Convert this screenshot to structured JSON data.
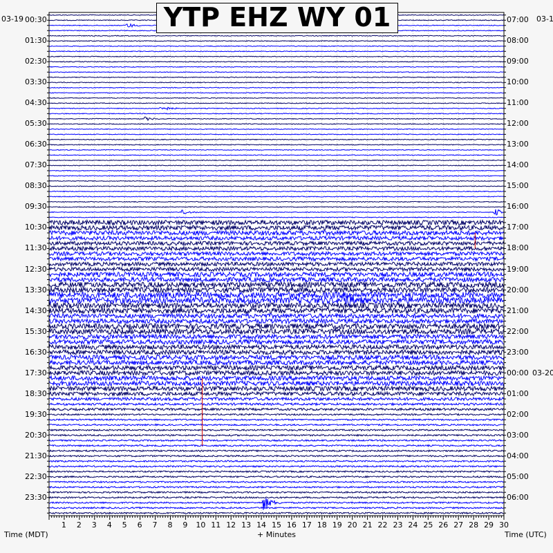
{
  "chart_data": {
    "type": "line",
    "title": "YTP EHZ WY 01",
    "left_axis_label": "Time (MDT)",
    "right_axis_label": "Time (UTC)",
    "x_axis_label": "+ Minutes",
    "left_date": "03-19",
    "right_date_top": "03-1",
    "right_date_change": "03-20",
    "x_ticks": [
      "1",
      "2",
      "3",
      "4",
      "5",
      "6",
      "7",
      "8",
      "9",
      "10",
      "11",
      "12",
      "13",
      "14",
      "15",
      "16",
      "17",
      "18",
      "19",
      "20",
      "21",
      "22",
      "23",
      "24",
      "25",
      "26",
      "27",
      "28",
      "29",
      "30"
    ],
    "xlim": [
      0,
      30
    ],
    "left_times": [
      "00:30",
      "01:30",
      "02:30",
      "03:30",
      "04:30",
      "05:30",
      "06:30",
      "07:30",
      "08:30",
      "09:30",
      "10:30",
      "11:30",
      "12:30",
      "13:30",
      "14:30",
      "15:30",
      "16:30",
      "17:30",
      "18:30",
      "19:30",
      "20:30",
      "21:30",
      "22:30",
      "23:30"
    ],
    "right_times": [
      "07:00",
      "08:00",
      "09:00",
      "10:00",
      "11:00",
      "12:00",
      "13:00",
      "14:00",
      "15:00",
      "16:00",
      "17:00",
      "18:00",
      "19:00",
      "20:00",
      "21:00",
      "22:00",
      "23:00",
      "00:00",
      "01:00",
      "02:00",
      "03:00",
      "04:00",
      "05:00",
      "06:00"
    ],
    "trace_colors": [
      "#000066",
      "#0000ff"
    ],
    "event_color": "#cc0000",
    "trace_noise": [
      1,
      1,
      1,
      1,
      1,
      1,
      1,
      1,
      1,
      1,
      1,
      1,
      1,
      1,
      1,
      1,
      1,
      1,
      1,
      1,
      1,
      1,
      1,
      1,
      1,
      1,
      1,
      1,
      1,
      1,
      1,
      1,
      1,
      1,
      1,
      1,
      1,
      1,
      1,
      1,
      6,
      6,
      6,
      5,
      5,
      5,
      5,
      5,
      5,
      5,
      6,
      6,
      7,
      7,
      8,
      8,
      7,
      7,
      6,
      6,
      7,
      7,
      6,
      6,
      6,
      6,
      6,
      6,
      6,
      6,
      6,
      6,
      6,
      5,
      4,
      3,
      3,
      2,
      2,
      2,
      2,
      2,
      2,
      2,
      2,
      2,
      2,
      2,
      2,
      2,
      2,
      2,
      2,
      2,
      2,
      2,
      2
    ],
    "events": [
      {
        "trace": 2,
        "minute": 5.2,
        "amp": 6
      },
      {
        "trace": 18,
        "minute": 7.4,
        "amp": 8
      },
      {
        "trace": 20,
        "minute": 6.4,
        "amp": 4
      },
      {
        "trace": 38,
        "minute": 8.9,
        "amp": 5
      },
      {
        "trace": 38,
        "minute": 29.5,
        "amp": 8
      },
      {
        "trace": 55,
        "minute": 19.5,
        "amp": 18
      },
      {
        "trace": 94,
        "minute": 14.2,
        "amp": 18
      }
    ],
    "red_lines": [
      {
        "minute": 10.1,
        "from_trace": 70,
        "to_trace": 83
      },
      {
        "minute": 28.1,
        "from_trace": 42,
        "to_trace": 45
      }
    ]
  }
}
